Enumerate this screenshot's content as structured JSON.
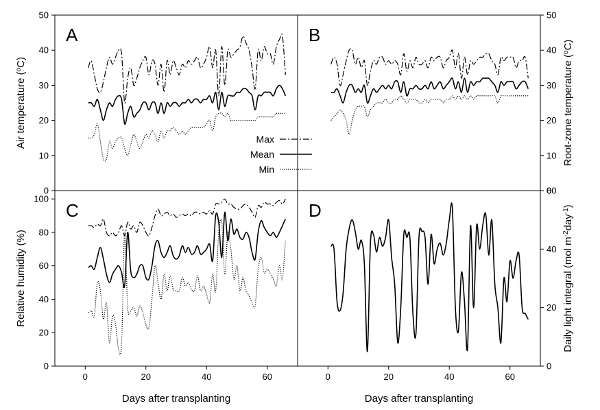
{
  "chart_data": [
    {
      "type": "line",
      "panel": "A",
      "position": "top-left",
      "letter": "A",
      "xlabel": "",
      "ylabel_html_parts": [
        "Air temperature (",
        "o",
        "C)"
      ],
      "xlim": [
        -10,
        70
      ],
      "ylim": [
        0,
        50
      ],
      "yticks": [
        0,
        10,
        20,
        30,
        40,
        50
      ],
      "ytick_side": "left",
      "xticks": [],
      "x": [
        1,
        2,
        3,
        4,
        5,
        6,
        7,
        8,
        9,
        10,
        11,
        12,
        13,
        14,
        15,
        16,
        17,
        18,
        19,
        20,
        21,
        22,
        23,
        24,
        25,
        26,
        27,
        28,
        29,
        30,
        31,
        32,
        33,
        34,
        35,
        36,
        37,
        38,
        39,
        40,
        41,
        42,
        43,
        44,
        45,
        46,
        47,
        48,
        49,
        50,
        51,
        52,
        53,
        54,
        55,
        56,
        57,
        58,
        59,
        60,
        61,
        62,
        63,
        64,
        65,
        66
      ],
      "series": [
        {
          "name": "Max",
          "style": "dashdot",
          "values": [
            35,
            37,
            33,
            29,
            28,
            31,
            35,
            38,
            36,
            38,
            40,
            39,
            25,
            32,
            35,
            30,
            32,
            35,
            37,
            38,
            33,
            37,
            36,
            30,
            36,
            28,
            37,
            33,
            37,
            35,
            33,
            36,
            35,
            37,
            36,
            37,
            38,
            35,
            36,
            38,
            41,
            35,
            40,
            27,
            41,
            30,
            40,
            38,
            39,
            40,
            41,
            44,
            42,
            40,
            35,
            29,
            40,
            37,
            41,
            39,
            39,
            36,
            41,
            43,
            44,
            33
          ]
        },
        {
          "name": "Mean",
          "style": "solid",
          "values": [
            25,
            25,
            24,
            26,
            23,
            20,
            23,
            25,
            24,
            26,
            27,
            26,
            19,
            22,
            24,
            21,
            22,
            23,
            25,
            25,
            23,
            25,
            25,
            22,
            25,
            22,
            25,
            24,
            25,
            25,
            24,
            25,
            25,
            26,
            25,
            26,
            26,
            25,
            26,
            26,
            27,
            25,
            28,
            23,
            28,
            24,
            27,
            27,
            27,
            28,
            28,
            29,
            29,
            28,
            27,
            23,
            27,
            27,
            28,
            28,
            28,
            27,
            29,
            30,
            29,
            27
          ]
        },
        {
          "name": "Min",
          "style": "dotted",
          "values": [
            15,
            15,
            16,
            19,
            14,
            9,
            9,
            14,
            12,
            14,
            15,
            15,
            12,
            10,
            13,
            16,
            14,
            12,
            14,
            16,
            15,
            17,
            16,
            14,
            17,
            15,
            17,
            17,
            18,
            17,
            16,
            17,
            16,
            17,
            18,
            18,
            18,
            18,
            18,
            19,
            20,
            17,
            21,
            22,
            22,
            21,
            22,
            20,
            20,
            20,
            20,
            20,
            20,
            20,
            20,
            20,
            21,
            21,
            21,
            21,
            21,
            21,
            22,
            22,
            22,
            22
          ]
        }
      ]
    },
    {
      "type": "line",
      "panel": "B",
      "position": "top-right",
      "letter": "B",
      "xlabel": "",
      "ylabel_html_parts": [
        "Root-zone temperature (",
        "o",
        "C)"
      ],
      "xlim": [
        -10,
        70
      ],
      "ylim": [
        0,
        50
      ],
      "yticks": [
        0,
        10,
        20,
        30,
        40,
        50
      ],
      "ytick_side": "right",
      "xticks": [],
      "x": [
        1,
        2,
        3,
        4,
        5,
        6,
        7,
        8,
        9,
        10,
        11,
        12,
        13,
        14,
        15,
        16,
        17,
        18,
        19,
        20,
        21,
        22,
        23,
        24,
        25,
        26,
        27,
        28,
        29,
        30,
        31,
        32,
        33,
        34,
        35,
        36,
        37,
        38,
        39,
        40,
        41,
        42,
        43,
        44,
        45,
        46,
        47,
        48,
        49,
        50,
        51,
        52,
        53,
        54,
        55,
        56,
        57,
        58,
        59,
        60,
        61,
        62,
        63,
        64,
        65,
        66
      ],
      "series": [
        {
          "name": "Max",
          "style": "dashdot",
          "values": [
            36,
            38,
            36,
            30,
            33,
            37,
            40,
            40,
            36,
            38,
            35,
            37,
            30,
            34,
            37,
            36,
            38,
            38,
            36,
            37,
            36,
            37,
            36,
            33,
            39,
            34,
            37,
            35,
            38,
            36,
            36,
            37,
            35,
            38,
            37,
            38,
            38,
            35,
            37,
            38,
            40,
            35,
            39,
            32,
            38,
            33,
            37,
            36,
            37,
            38,
            38,
            39,
            39,
            37,
            36,
            33,
            38,
            37,
            38,
            38,
            38,
            35,
            37,
            37,
            38,
            32
          ]
        },
        {
          "name": "Mean",
          "style": "solid",
          "values": [
            28,
            28,
            29,
            27,
            25,
            28,
            30,
            30,
            28,
            29,
            28,
            30,
            25,
            27,
            29,
            28,
            29,
            30,
            29,
            30,
            29,
            31,
            31,
            28,
            31,
            27,
            29,
            29,
            30,
            29,
            29,
            30,
            29,
            31,
            29,
            30,
            31,
            29,
            30,
            31,
            32,
            29,
            31,
            28,
            32,
            28,
            31,
            30,
            31,
            31,
            32,
            32,
            32,
            31,
            30,
            28,
            31,
            30,
            31,
            31,
            31,
            29,
            30,
            31,
            31,
            29
          ]
        },
        {
          "name": "Min",
          "style": "dotted",
          "values": [
            20,
            21,
            22,
            23,
            22,
            20,
            16,
            20,
            23,
            24,
            24,
            24,
            21,
            23,
            24,
            25,
            25,
            25,
            26,
            25,
            25,
            26,
            26,
            27,
            26,
            25,
            26,
            26,
            26,
            25,
            25,
            26,
            25,
            26,
            26,
            26,
            26,
            25,
            26,
            26,
            27,
            26,
            27,
            26,
            27,
            26,
            27,
            26,
            27,
            27,
            27,
            27,
            27,
            27,
            27,
            25,
            27,
            27,
            27,
            27,
            27,
            27,
            27,
            27,
            27,
            27
          ]
        }
      ]
    },
    {
      "type": "line",
      "panel": "C",
      "position": "bottom-left",
      "letter": "C",
      "xlabel": "Days after transplanting",
      "ylabel_html_parts": [
        "Relative humidity (%)"
      ],
      "xlim": [
        -10,
        70
      ],
      "ylim": [
        0,
        105
      ],
      "yticks": [
        0,
        20,
        40,
        60,
        80,
        100
      ],
      "ytick_side": "left",
      "xticks": [
        0,
        20,
        40,
        60
      ],
      "x": [
        1,
        2,
        3,
        4,
        5,
        6,
        7,
        8,
        9,
        10,
        11,
        12,
        13,
        14,
        15,
        16,
        17,
        18,
        19,
        20,
        21,
        22,
        23,
        24,
        25,
        26,
        27,
        28,
        29,
        30,
        31,
        32,
        33,
        34,
        35,
        36,
        37,
        38,
        39,
        40,
        41,
        42,
        43,
        44,
        45,
        46,
        47,
        48,
        49,
        50,
        51,
        52,
        53,
        54,
        55,
        56,
        57,
        58,
        59,
        60,
        61,
        62,
        63,
        64,
        65,
        66
      ],
      "series": [
        {
          "name": "Max",
          "style": "dashdot",
          "values": [
            84,
            84,
            83,
            85,
            84,
            88,
            80,
            78,
            80,
            78,
            80,
            84,
            78,
            86,
            82,
            84,
            80,
            86,
            84,
            80,
            78,
            83,
            90,
            94,
            90,
            91,
            92,
            90,
            91,
            89,
            90,
            91,
            90,
            91,
            90,
            92,
            92,
            91,
            92,
            91,
            93,
            91,
            97,
            97,
            98,
            100,
            97,
            97,
            95,
            94,
            94,
            96,
            97,
            95,
            92,
            89,
            96,
            95,
            98,
            97,
            97,
            96,
            98,
            99,
            97,
            100
          ]
        },
        {
          "name": "Mean",
          "style": "solid",
          "values": [
            59,
            60,
            58,
            65,
            71,
            64,
            55,
            50,
            55,
            58,
            60,
            56,
            48,
            80,
            57,
            53,
            55,
            60,
            60,
            53,
            52,
            60,
            72,
            75,
            68,
            65,
            68,
            72,
            66,
            64,
            66,
            72,
            68,
            71,
            67,
            68,
            72,
            67,
            68,
            70,
            73,
            63,
            90,
            86,
            65,
            92,
            75,
            88,
            79,
            82,
            77,
            76,
            80,
            77,
            68,
            64,
            80,
            87,
            83,
            80,
            78,
            80,
            77,
            80,
            84,
            88
          ]
        },
        {
          "name": "Min",
          "style": "dotted",
          "values": [
            32,
            33,
            30,
            50,
            45,
            28,
            38,
            14,
            30,
            25,
            10,
            14,
            80,
            35,
            33,
            35,
            30,
            36,
            32,
            25,
            23,
            40,
            60,
            50,
            40,
            55,
            45,
            54,
            46,
            45,
            45,
            53,
            48,
            50,
            46,
            45,
            54,
            45,
            48,
            43,
            38,
            55,
            45,
            80,
            86,
            55,
            80,
            70,
            52,
            60,
            45,
            53,
            45,
            42,
            38,
            36,
            58,
            65,
            56,
            58,
            55,
            52,
            48,
            60,
            52,
            75
          ]
        }
      ]
    },
    {
      "type": "line",
      "panel": "D",
      "position": "bottom-right",
      "letter": "D",
      "xlabel": "Days after transplanting",
      "ylabel_html_parts": [
        "Daily light integral (mol m",
        "-2",
        "day",
        "-1",
        ")"
      ],
      "xlim": [
        -10,
        70
      ],
      "ylim": [
        0,
        60
      ],
      "yticks": [
        0,
        20,
        40,
        60
      ],
      "ytick_side": "right",
      "xticks": [
        0,
        20,
        40,
        60
      ],
      "x": [
        1,
        2,
        3,
        4,
        5,
        6,
        7,
        8,
        9,
        10,
        11,
        12,
        13,
        14,
        15,
        16,
        17,
        18,
        19,
        20,
        21,
        22,
        23,
        24,
        25,
        26,
        27,
        28,
        29,
        30,
        31,
        32,
        33,
        34,
        35,
        36,
        37,
        38,
        39,
        40,
        41,
        42,
        43,
        44,
        45,
        46,
        47,
        48,
        49,
        50,
        51,
        52,
        53,
        54,
        55,
        56,
        57,
        58,
        59,
        60,
        61,
        62,
        63,
        64,
        65,
        66
      ],
      "series": [
        {
          "name": "",
          "style": "solid",
          "values": [
            41,
            40,
            22,
            19,
            25,
            40,
            47,
            50,
            46,
            40,
            43,
            35,
            5,
            42,
            45,
            39,
            44,
            41,
            44,
            50,
            37,
            28,
            8,
            20,
            45,
            44,
            44,
            18,
            11,
            44,
            46,
            44,
            28,
            45,
            35,
            40,
            42,
            38,
            42,
            50,
            54,
            20,
            12,
            32,
            22,
            6,
            48,
            20,
            48,
            40,
            48,
            52,
            38,
            50,
            28,
            20,
            8,
            30,
            22,
            36,
            30,
            36,
            38,
            20,
            18,
            16
          ]
        }
      ]
    }
  ],
  "legend": {
    "placement": "panel-A right",
    "entries": [
      {
        "label": "Max",
        "style": "dashdot"
      },
      {
        "label": "Mean",
        "style": "solid"
      },
      {
        "label": "Min",
        "style": "dotted"
      }
    ]
  }
}
